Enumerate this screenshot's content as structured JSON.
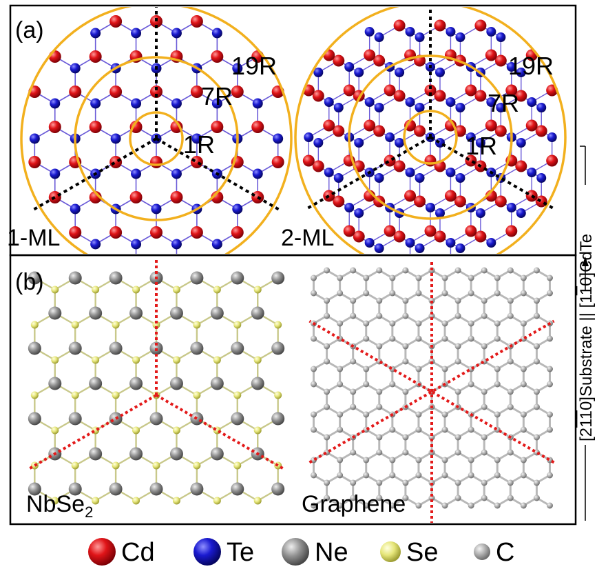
{
  "panels": {
    "a": {
      "label": "(a)",
      "left": {
        "label": "1-ML",
        "rings": [
          "1R",
          "7R",
          "19R"
        ]
      },
      "right": {
        "label": "2-ML",
        "rings": [
          "1R",
          "7R",
          "19R"
        ]
      }
    },
    "b": {
      "label": "(b)",
      "left": {
        "label_main": "NbSe",
        "label_sub": "2"
      },
      "right": {
        "label": "Graphene"
      }
    }
  },
  "side_label": {
    "prefix": "[2",
    "bar1": "1",
    "bar2": "1",
    "middle": "0]Substrate || [1",
    "bar3": "1",
    "suffix": "0]CdTe"
  },
  "legend": [
    {
      "label": "Cd",
      "color": "#e0141b",
      "style": "large"
    },
    {
      "label": "Te",
      "color": "#1a1ac8",
      "style": "large"
    },
    {
      "label": "Ne",
      "color": "#8e8e8e",
      "style": "large"
    },
    {
      "label": "Se",
      "color": "#e8e87a",
      "style": "medium"
    },
    {
      "label": "C",
      "color": "#a8a8a8",
      "style": "small"
    }
  ],
  "colors": {
    "ring": "#f2b01e",
    "axis_a": "#000000",
    "axis_b": "#e31a1a",
    "bond_a": "#6a5ad8",
    "bond_nbse2": "#c8c88a",
    "bond_graphene": "#b8b8b8"
  }
}
